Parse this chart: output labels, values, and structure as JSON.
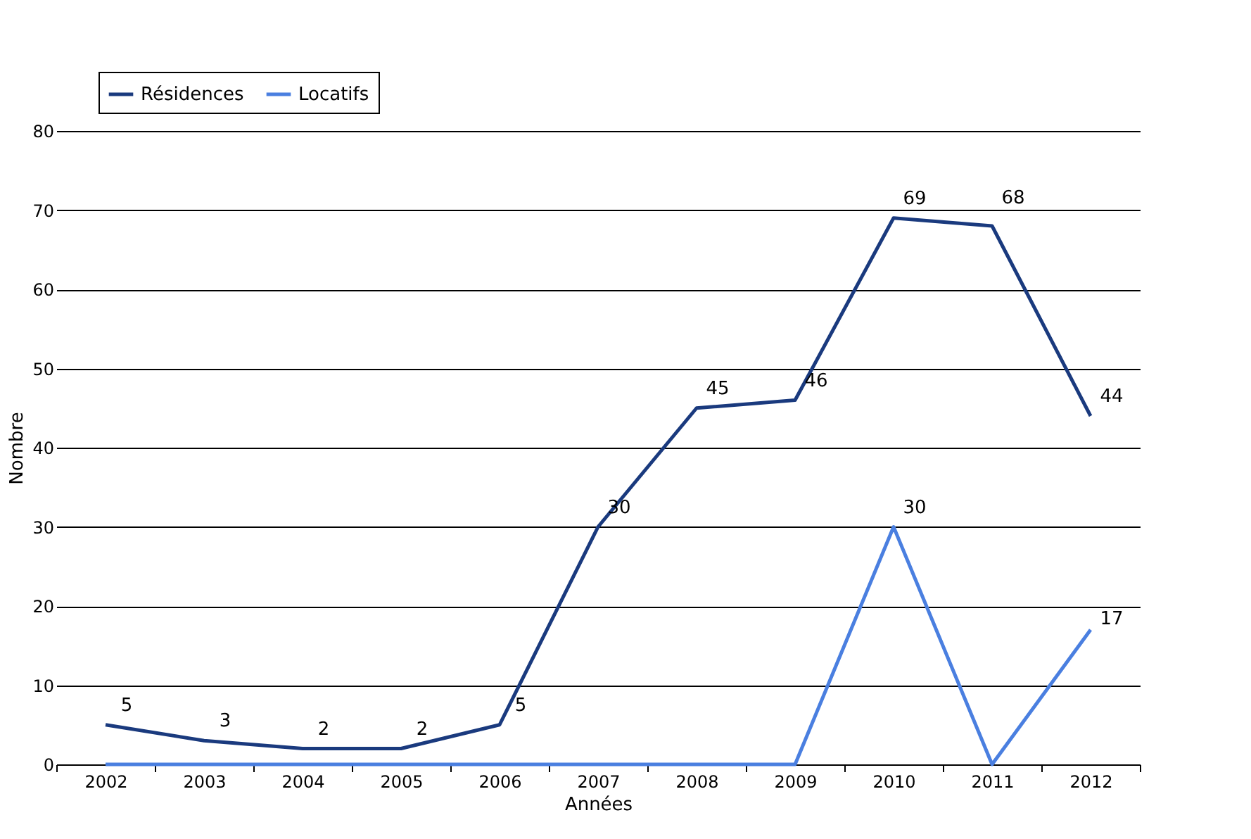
{
  "chart_data": {
    "type": "line",
    "xlabel": "Années",
    "ylabel": "Nombre",
    "categories": [
      "2002",
      "2003",
      "2004",
      "2005",
      "2006",
      "2007",
      "2008",
      "2009",
      "2010",
      "2011",
      "2012"
    ],
    "series": [
      {
        "name": "Résidences",
        "color": "#1a3a7e",
        "values": [
          5,
          3,
          2,
          2,
          5,
          30,
          45,
          46,
          69,
          68,
          44
        ],
        "value_labels": [
          "5",
          "3",
          "2",
          "2",
          "5",
          "30",
          "45",
          "46",
          "69",
          "68",
          "44"
        ]
      },
      {
        "name": "Locatifs",
        "color": "#4a7fe0",
        "values": [
          0,
          0,
          0,
          0,
          0,
          0,
          0,
          0,
          30,
          0,
          17
        ],
        "value_labels": [
          null,
          null,
          null,
          null,
          null,
          null,
          null,
          null,
          "30",
          null,
          "17"
        ]
      }
    ],
    "ylim": [
      0,
      80
    ],
    "yticks": [
      0,
      10,
      20,
      30,
      40,
      50,
      60,
      70,
      80
    ],
    "grid": "y",
    "legend": "top left",
    "marker": "none",
    "line_style": "solid"
  }
}
